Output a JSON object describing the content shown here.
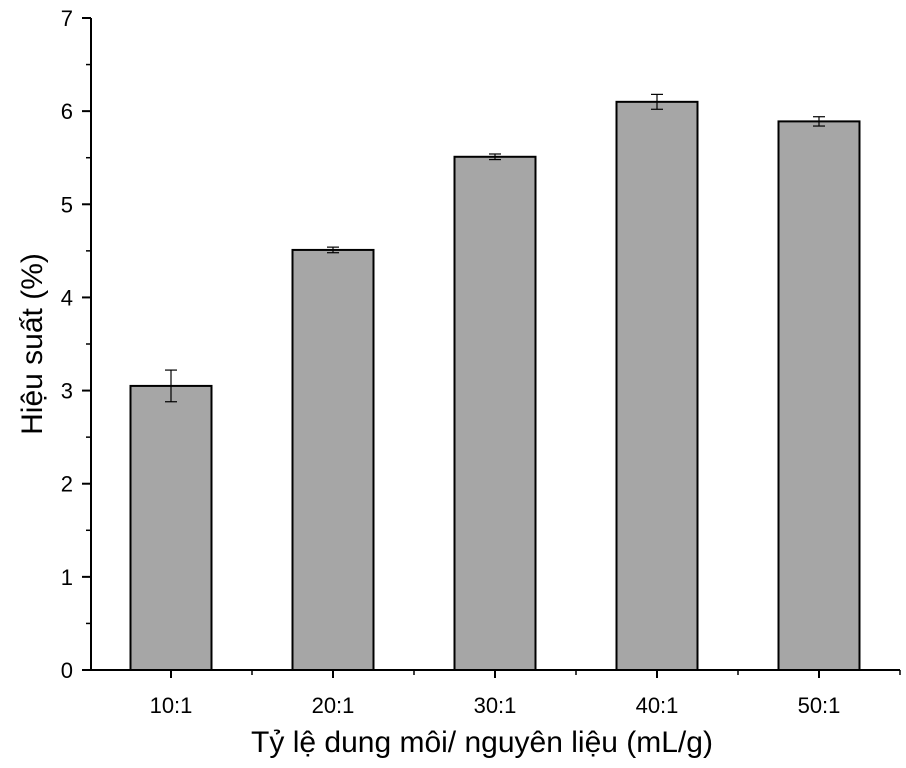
{
  "chart_data": {
    "type": "bar",
    "title": "",
    "xlabel": "Tỷ lệ dung môi/ nguyên liệu (mL/g)",
    "ylabel": "Hiệu suất (%)",
    "categories": [
      "10:1",
      "20:1",
      "30:1",
      "40:1",
      "50:1"
    ],
    "values": [
      3.05,
      4.51,
      5.51,
      6.1,
      5.89
    ],
    "errors": [
      0.17,
      0.03,
      0.03,
      0.08,
      0.05
    ],
    "ylim": [
      0,
      7
    ],
    "yticks": [
      "0",
      "1",
      "2",
      "3",
      "4",
      "5",
      "6",
      "7"
    ],
    "grid": false,
    "bar_color": "#a6a6a6",
    "edge_color": "#000000"
  }
}
